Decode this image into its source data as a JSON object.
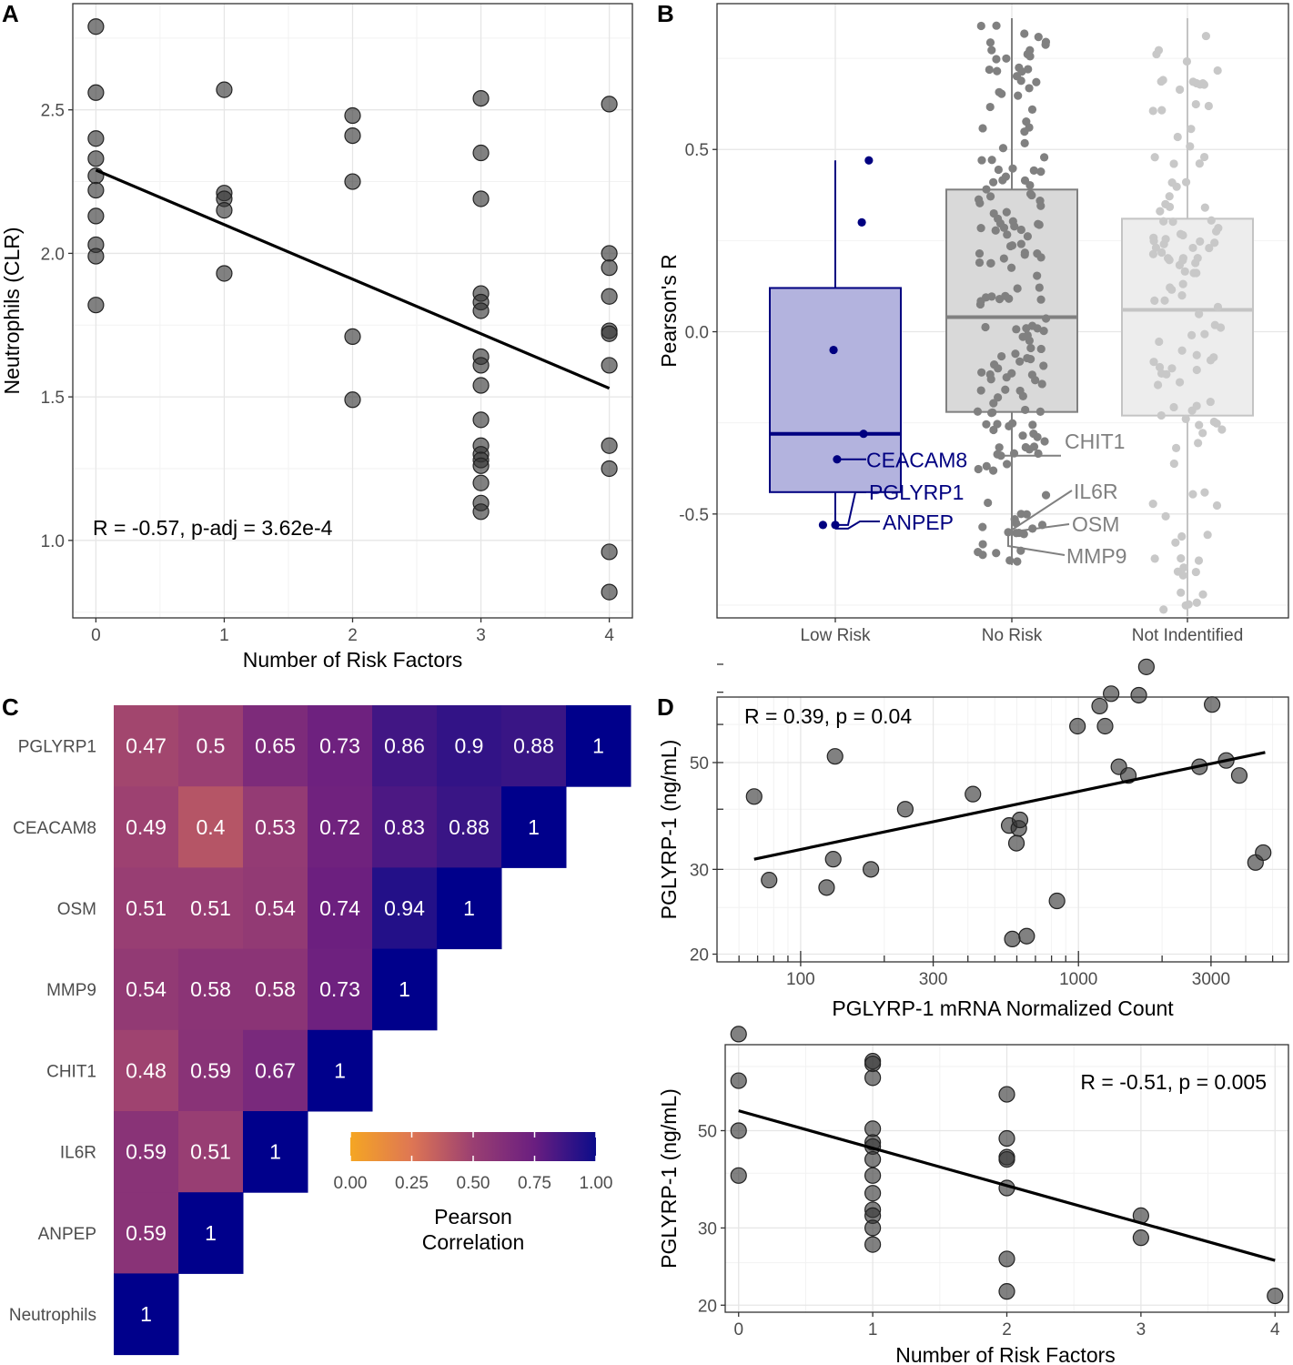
{
  "panels": {
    "A": "A",
    "B": "B",
    "C": "C",
    "D": "D"
  },
  "colors": {
    "point_dark": "#333333",
    "low_risk": "#000080",
    "no_risk": "#808080",
    "not_identified": "#c8c8c8",
    "scale_low": "#f5a623",
    "scale_mid": "#9a3f72",
    "scale_high": "#0c0c8a"
  },
  "chart_data": [
    {
      "id": "A",
      "type": "scatter",
      "xlabel": "Number of Risk Factors",
      "ylabel": "Neutrophils (CLR)",
      "xlim": [
        -0.18,
        4.18
      ],
      "ylim": [
        0.73,
        2.87
      ],
      "xticks": [
        0,
        1,
        2,
        3,
        4
      ],
      "xtick_labels": [
        "0",
        "1",
        "2",
        "3",
        "4"
      ],
      "yticks": [
        1.0,
        1.5,
        2.0,
        2.5
      ],
      "ytick_labels": [
        "1.0",
        "1.5",
        "2.0",
        "2.5"
      ],
      "annotation": "R = -0.57, p-adj = 3.62e-4",
      "fit": {
        "x": [
          0,
          4
        ],
        "y": [
          2.29,
          1.53
        ]
      },
      "points": [
        {
          "x": 0,
          "y": 2.79
        },
        {
          "x": 0,
          "y": 2.56
        },
        {
          "x": 0,
          "y": 2.4
        },
        {
          "x": 0,
          "y": 2.33
        },
        {
          "x": 0,
          "y": 2.27
        },
        {
          "x": 0,
          "y": 2.22
        },
        {
          "x": 0,
          "y": 2.13
        },
        {
          "x": 0,
          "y": 2.03
        },
        {
          "x": 0,
          "y": 1.99
        },
        {
          "x": 0,
          "y": 1.82
        },
        {
          "x": 1,
          "y": 2.57
        },
        {
          "x": 1,
          "y": 2.21
        },
        {
          "x": 1,
          "y": 2.19
        },
        {
          "x": 1,
          "y": 2.15
        },
        {
          "x": 1,
          "y": 1.93
        },
        {
          "x": 2,
          "y": 2.48
        },
        {
          "x": 2,
          "y": 2.41
        },
        {
          "x": 2,
          "y": 2.25
        },
        {
          "x": 2,
          "y": 1.71
        },
        {
          "x": 2,
          "y": 1.49
        },
        {
          "x": 3,
          "y": 2.54
        },
        {
          "x": 3,
          "y": 2.35
        },
        {
          "x": 3,
          "y": 2.19
        },
        {
          "x": 3,
          "y": 1.86
        },
        {
          "x": 3,
          "y": 1.83
        },
        {
          "x": 3,
          "y": 1.8
        },
        {
          "x": 3,
          "y": 1.64
        },
        {
          "x": 3,
          "y": 1.61
        },
        {
          "x": 3,
          "y": 1.54
        },
        {
          "x": 3,
          "y": 1.42
        },
        {
          "x": 3,
          "y": 1.33
        },
        {
          "x": 3,
          "y": 1.3
        },
        {
          "x": 3,
          "y": 1.28
        },
        {
          "x": 3,
          "y": 1.26
        },
        {
          "x": 3,
          "y": 1.2
        },
        {
          "x": 3,
          "y": 1.13
        },
        {
          "x": 3,
          "y": 1.1
        },
        {
          "x": 4,
          "y": 2.52
        },
        {
          "x": 4,
          "y": 2.0
        },
        {
          "x": 4,
          "y": 1.95
        },
        {
          "x": 4,
          "y": 1.85
        },
        {
          "x": 4,
          "y": 1.73
        },
        {
          "x": 4,
          "y": 1.72
        },
        {
          "x": 4,
          "y": 1.61
        },
        {
          "x": 4,
          "y": 1.33
        },
        {
          "x": 4,
          "y": 1.25
        },
        {
          "x": 4,
          "y": 0.96
        },
        {
          "x": 4,
          "y": 0.82
        }
      ]
    },
    {
      "id": "B",
      "type": "box",
      "ylabel": "Pearson's R",
      "ylim": [
        -0.785,
        0.9
      ],
      "yticks": [
        -0.5,
        0.0,
        0.5
      ],
      "ytick_labels": [
        "-0.5",
        "0.0",
        "0.5"
      ],
      "categories": [
        "Low Risk",
        "No Risk",
        "Not Indentified"
      ],
      "boxes": [
        {
          "min": -0.53,
          "q1": -0.44,
          "median": -0.28,
          "q3": 0.12,
          "max": 0.47
        },
        {
          "min": -0.64,
          "q1": -0.22,
          "median": 0.04,
          "q3": 0.39,
          "max": 0.86
        },
        {
          "min": -0.78,
          "q1": -0.23,
          "median": 0.06,
          "q3": 0.31,
          "max": 0.86
        }
      ],
      "low_risk_points": [
        {
          "x": -0.07,
          "y": -0.53
        },
        {
          "x": 0.0,
          "y": -0.53
        },
        {
          "x": 0.01,
          "y": -0.35
        },
        {
          "x": 0.16,
          "y": -0.28
        },
        {
          "x": -0.01,
          "y": -0.05
        },
        {
          "x": 0.15,
          "y": 0.3
        },
        {
          "x": 0.19,
          "y": 0.47
        }
      ],
      "labels": [
        {
          "text": "CEACAM8",
          "group": 0,
          "y": -0.35
        },
        {
          "text": "PGLYRP1",
          "group": 0,
          "y": -0.53
        },
        {
          "text": "ANPEP",
          "group": 0,
          "y": -0.54
        },
        {
          "text": "CHIT1",
          "group": 1,
          "y": -0.34
        },
        {
          "text": "IL6R",
          "group": 1,
          "y": -0.53
        },
        {
          "text": "OSM",
          "group": 1,
          "y": -0.55
        },
        {
          "text": "MMP9",
          "group": 1,
          "y": -0.57
        }
      ]
    },
    {
      "id": "C",
      "type": "heatmap",
      "legend_title": [
        "Pearson",
        "Correlation"
      ],
      "legend_ticks": [
        "0.00",
        "0.25",
        "0.50",
        "0.75",
        "1.00"
      ],
      "rows": [
        "PGLYRP1",
        "CEACAM8",
        "OSM",
        "MMP9",
        "CHIT1",
        "IL6R",
        "ANPEP",
        "Neutrophils"
      ],
      "cells": [
        [
          "0.47",
          "0.5",
          "0.65",
          "0.73",
          "0.86",
          "0.9",
          "0.88",
          "1"
        ],
        [
          "0.49",
          "0.4",
          "0.53",
          "0.72",
          "0.83",
          "0.88",
          "1"
        ],
        [
          "0.51",
          "0.51",
          "0.54",
          "0.74",
          "0.94",
          "1"
        ],
        [
          "0.54",
          "0.58",
          "0.58",
          "0.73",
          "1"
        ],
        [
          "0.48",
          "0.59",
          "0.67",
          "1"
        ],
        [
          "0.59",
          "0.51",
          "1"
        ],
        [
          "0.59",
          "1"
        ],
        [
          "1"
        ]
      ]
    },
    {
      "id": "D1",
      "type": "scatter",
      "xscale": "log10",
      "xlabel": "PGLYRP-1 mRNA Normalized Count",
      "ylabel": "PGLYRP-1 (ng/mL)",
      "xlim": [
        50,
        5700
      ],
      "ylim_log10": [
        1.285,
        1.835
      ],
      "xticks": [
        100,
        300,
        1000,
        3000
      ],
      "xtick_labels": [
        "100",
        "300",
        "1000",
        "3000"
      ],
      "yticks": [
        20,
        30,
        50
      ],
      "ytick_labels": [
        "20",
        "30",
        "50"
      ],
      "annotation": "R = 0.39, p = 0.04",
      "fit": {
        "x": [
          68,
          4700
        ],
        "y": [
          31.5,
          52.5
        ]
      },
      "points": [
        {
          "x": 68,
          "y": 42.5
        },
        {
          "x": 77,
          "y": 28.5
        },
        {
          "x": 124,
          "y": 27.5
        },
        {
          "x": 131,
          "y": 31.5
        },
        {
          "x": 133,
          "y": 51.5
        },
        {
          "x": 179,
          "y": 30.0
        },
        {
          "x": 238,
          "y": 40.0
        },
        {
          "x": 417,
          "y": 43.0
        },
        {
          "x": 563,
          "y": 37.0
        },
        {
          "x": 598,
          "y": 34.0
        },
        {
          "x": 610,
          "y": 36.5
        },
        {
          "x": 616,
          "y": 38.0
        },
        {
          "x": 578,
          "y": 21.5
        },
        {
          "x": 651,
          "y": 21.8
        },
        {
          "x": 837,
          "y": 25.8
        },
        {
          "x": 992,
          "y": 59.5
        },
        {
          "x": 1192,
          "y": 65.5
        },
        {
          "x": 1247,
          "y": 59.5
        },
        {
          "x": 1311,
          "y": 69.5
        },
        {
          "x": 1398,
          "y": 49.0
        },
        {
          "x": 1512,
          "y": 47.0
        },
        {
          "x": 1649,
          "y": 69.0
        },
        {
          "x": 1756,
          "y": 79.0
        },
        {
          "x": 2727,
          "y": 49.0
        },
        {
          "x": 3028,
          "y": 66.0
        },
        {
          "x": 3403,
          "y": 50.5
        },
        {
          "x": 3792,
          "y": 47.0
        },
        {
          "x": 4339,
          "y": 31.0
        },
        {
          "x": 4623,
          "y": 32.5
        }
      ]
    },
    {
      "id": "D2",
      "type": "scatter",
      "xlabel": "Number of Risk Factors",
      "ylabel": "PGLYRP-1 (ng/mL)",
      "xlim": [
        -0.1,
        4.1
      ],
      "ylim_log10": [
        1.285,
        1.895
      ],
      "xticks": [
        0,
        1,
        2,
        3,
        4
      ],
      "xtick_labels": [
        "0",
        "1",
        "2",
        "3",
        "4"
      ],
      "yticks": [
        20,
        30,
        50
      ],
      "ytick_labels": [
        "20",
        "30",
        "50"
      ],
      "annotation": "R = -0.51, p = 0.005",
      "fit": {
        "x": [
          0,
          4
        ],
        "y": [
          55.5,
          25.3
        ]
      },
      "points": [
        {
          "x": 0,
          "y": 83.0
        },
        {
          "x": 0,
          "y": 65.0
        },
        {
          "x": 0,
          "y": 50.0
        },
        {
          "x": 0,
          "y": 39.5
        },
        {
          "x": 1,
          "y": 72.0
        },
        {
          "x": 1,
          "y": 71.0
        },
        {
          "x": 1,
          "y": 66.0
        },
        {
          "x": 1,
          "y": 50.5
        },
        {
          "x": 1,
          "y": 47.0
        },
        {
          "x": 1,
          "y": 46.0
        },
        {
          "x": 1,
          "y": 43.0
        },
        {
          "x": 1,
          "y": 39.5
        },
        {
          "x": 1,
          "y": 36.0
        },
        {
          "x": 1,
          "y": 33.0
        },
        {
          "x": 1,
          "y": 32.0
        },
        {
          "x": 1,
          "y": 30.0
        },
        {
          "x": 1,
          "y": 27.5
        },
        {
          "x": 2,
          "y": 60.5
        },
        {
          "x": 2,
          "y": 48.0
        },
        {
          "x": 2,
          "y": 43.5
        },
        {
          "x": 2,
          "y": 43.0
        },
        {
          "x": 2,
          "y": 37.0
        },
        {
          "x": 2,
          "y": 25.5
        },
        {
          "x": 2,
          "y": 21.5
        },
        {
          "x": 3,
          "y": 32.0
        },
        {
          "x": 3,
          "y": 28.5
        },
        {
          "x": 4,
          "y": 21.0
        }
      ]
    }
  ]
}
